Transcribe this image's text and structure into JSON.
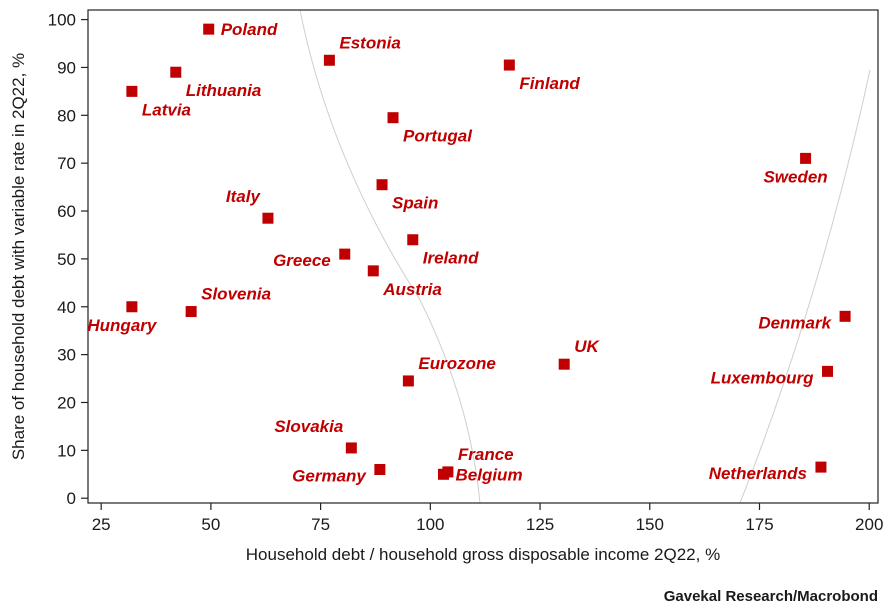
{
  "source": "Gavekal Research/Macrobond",
  "colors": {
    "marker": "#c00000",
    "label": "#c00000",
    "guide": "#cfcfcf"
  },
  "chart_data": {
    "type": "scatter",
    "title": "",
    "xlabel": "Household debt / household gross disposable income 2Q22, %",
    "ylabel": "Share of household debt with variable rate in 2Q22, %",
    "xlim": [
      22,
      202
    ],
    "ylim": [
      -1,
      102
    ],
    "xticks": [
      25,
      50,
      75,
      100,
      125,
      150,
      175,
      200
    ],
    "yticks": [
      0,
      10,
      20,
      30,
      40,
      50,
      60,
      70,
      80,
      90,
      100
    ],
    "grid": false,
    "legend": "none",
    "points": [
      {
        "label": "Poland",
        "x": 49.5,
        "y": 98,
        "pos": "right"
      },
      {
        "label": "Estonia",
        "x": 77,
        "y": 91.5,
        "pos": "upper-right"
      },
      {
        "label": "Lithuania",
        "x": 42,
        "y": 89,
        "pos": "lower-right"
      },
      {
        "label": "Finland",
        "x": 118,
        "y": 90.5,
        "pos": "lower-right"
      },
      {
        "label": "Latvia",
        "x": 32,
        "y": 85,
        "pos": "lower-right"
      },
      {
        "label": "Portugal",
        "x": 91.5,
        "y": 79.5,
        "pos": "lower-right"
      },
      {
        "label": "Sweden",
        "x": 185.5,
        "y": 71,
        "pos": "lower-left"
      },
      {
        "label": "Italy",
        "x": 63,
        "y": 58.5,
        "pos": "upper-left"
      },
      {
        "label": "Spain",
        "x": 89,
        "y": 65.5,
        "pos": "lower-right"
      },
      {
        "label": "Ireland",
        "x": 96,
        "y": 54,
        "pos": "lower-right"
      },
      {
        "label": "Greece",
        "x": 80.5,
        "y": 51,
        "pos": "left"
      },
      {
        "label": "Austria",
        "x": 87,
        "y": 47.5,
        "pos": "lower-right"
      },
      {
        "label": "Slovenia",
        "x": 45.5,
        "y": 39,
        "pos": "upper-right"
      },
      {
        "label": "Hungary",
        "x": 32,
        "y": 40,
        "pos": "lower-left"
      },
      {
        "label": "Denmark",
        "x": 194.5,
        "y": 38,
        "pos": "left"
      },
      {
        "label": "UK",
        "x": 130.5,
        "y": 28,
        "pos": "upper-right"
      },
      {
        "label": "Eurozone",
        "x": 95,
        "y": 24.5,
        "pos": "upper-right"
      },
      {
        "label": "Luxembourg",
        "x": 190.5,
        "y": 26.5,
        "pos": "left"
      },
      {
        "label": "Slovakia",
        "x": 82,
        "y": 10.5,
        "pos": "upper-left"
      },
      {
        "label": "France",
        "x": 104,
        "y": 5.5,
        "pos": "upper-right"
      },
      {
        "label": "Germany",
        "x": 88.5,
        "y": 6,
        "pos": "left"
      },
      {
        "label": "Belgium",
        "x": 103,
        "y": 5,
        "pos": "right"
      },
      {
        "label": "Netherlands",
        "x": 189,
        "y": 6.5,
        "pos": "left"
      }
    ]
  }
}
